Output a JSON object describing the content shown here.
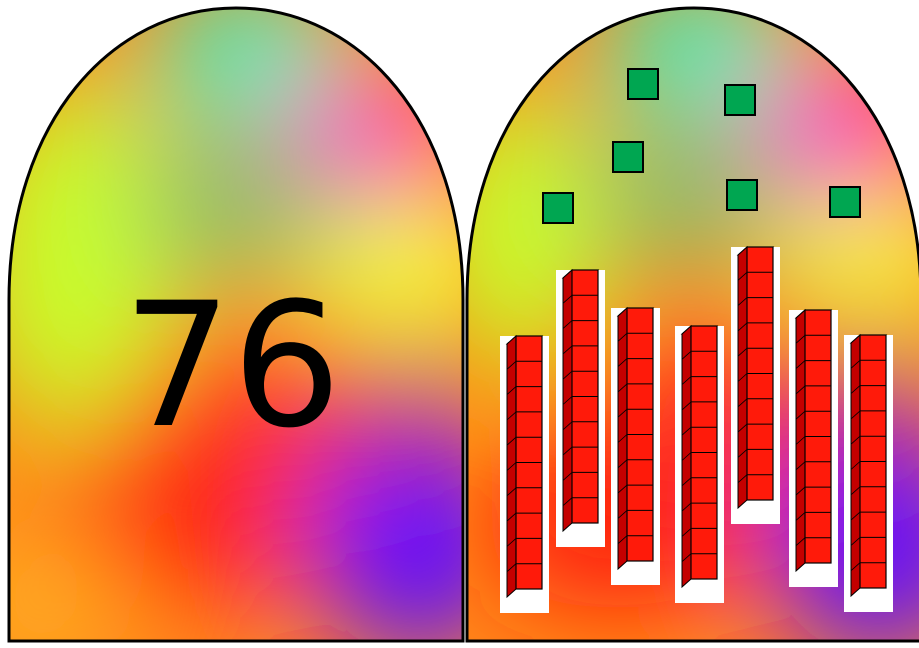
{
  "left_card": {
    "number": "76"
  },
  "right_card": {
    "ten_rods": 7,
    "units_per_rod": 10,
    "unit_cubes": 6
  },
  "colors": {
    "rod_fill": "#ff1a0a",
    "rod_side": "#c40000",
    "unit_cube": "#00a651",
    "outline": "#000000",
    "rainbow_stops": [
      "#34f0c9",
      "#f2ff2c",
      "#ff1fd1",
      "#ff2a1a",
      "#ff8d16",
      "#5a00ff"
    ]
  }
}
